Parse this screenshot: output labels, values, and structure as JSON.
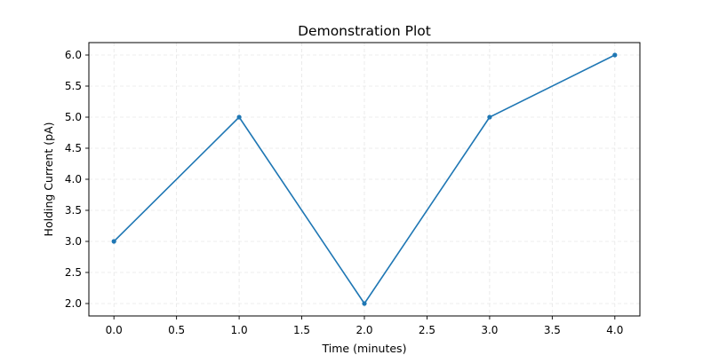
{
  "chart_data": {
    "type": "line",
    "title": "Demonstration Plot",
    "xlabel": "Time (minutes)",
    "ylabel": "Holding Current (pA)",
    "x": [
      0.0,
      1.0,
      2.0,
      3.0,
      4.0
    ],
    "series": [
      {
        "values": [
          3.0,
          5.0,
          2.0,
          5.0,
          6.0
        ],
        "color": "#1f77b4",
        "marker": "circle"
      }
    ],
    "xlim": [
      -0.2,
      4.2
    ],
    "ylim": [
      1.8,
      6.2
    ],
    "xticks": [
      0.0,
      0.5,
      1.0,
      1.5,
      2.0,
      2.5,
      3.0,
      3.5,
      4.0
    ],
    "xtick_labels": [
      "0.0",
      "0.5",
      "1.0",
      "1.5",
      "2.0",
      "2.5",
      "3.0",
      "3.5",
      "4.0"
    ],
    "yticks": [
      2.0,
      2.5,
      3.0,
      3.5,
      4.0,
      4.5,
      5.0,
      5.5,
      6.0
    ],
    "ytick_labels": [
      "2.0",
      "2.5",
      "3.0",
      "3.5",
      "4.0",
      "4.5",
      "5.0",
      "5.5",
      "6.0"
    ],
    "grid": true,
    "grid_style": "dashed",
    "legend": false
  }
}
